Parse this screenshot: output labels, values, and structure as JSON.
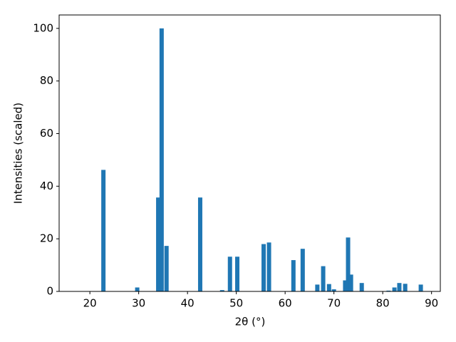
{
  "chart_data": {
    "type": "bar",
    "xlabel": "2θ (°)",
    "ylabel": "Intensities (scaled)",
    "x": [
      22.77,
      29.7,
      34.0,
      34.7,
      35.7,
      42.6,
      47.1,
      48.7,
      50.2,
      55.6,
      56.7,
      61.7,
      63.6,
      66.6,
      67.8,
      69.0,
      70.0,
      72.3,
      72.9,
      73.5,
      75.7,
      81.2,
      82.4,
      83.4,
      84.6,
      87.8
    ],
    "values": [
      46.2,
      1.5,
      35.7,
      100,
      17.3,
      35.7,
      0.5,
      13.2,
      13.2,
      18.0,
      18.6,
      11.9,
      16.2,
      2.6,
      9.6,
      2.8,
      0.8,
      4.2,
      20.5,
      6.4,
      3.2,
      0.3,
      1.5,
      3.2,
      2.9,
      2.6
    ],
    "color": "#1f77b4",
    "xlim": [
      13.7,
      91.8
    ],
    "xticks": [
      20,
      30,
      40,
      50,
      60,
      70,
      80,
      90
    ],
    "ylim": [
      0,
      105.1
    ],
    "yticks": [
      0,
      20,
      40,
      60,
      80,
      100
    ],
    "grid": false
  }
}
